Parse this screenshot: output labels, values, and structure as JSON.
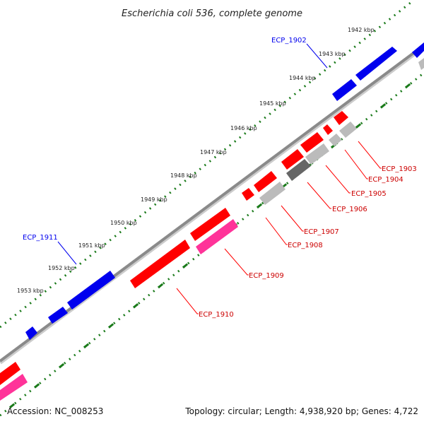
{
  "title": "Escherichia coli 536, complete genome",
  "accession": "Accession: NC_008253",
  "summary": "Topology: circular; Length: 4,938,920 bp; Genes: 4,722",
  "colors": {
    "forward_gene": "#0000ee",
    "reverse_gene": "#ff0000",
    "reverse_gene_dark": "#cc0000",
    "pink_feature": "#ff3399",
    "grey_feature": "#bbbbbb",
    "dark_grey_feature": "#666666",
    "backbone": "#888888",
    "tick_ring": "#1a7a1a"
  },
  "scale_ticks": [
    {
      "label": "1942 kbp"
    },
    {
      "label": "1943 kbp"
    },
    {
      "label": "1944 kbp"
    },
    {
      "label": "1945 kbp"
    },
    {
      "label": "1946 kbp"
    },
    {
      "label": "1947 kbp"
    },
    {
      "label": "1948 kbp"
    },
    {
      "label": "1949 kbp"
    },
    {
      "label": "1950 kbp"
    },
    {
      "label": "1951 kbp"
    },
    {
      "label": "1952 kbp"
    },
    {
      "label": "1953 kbp"
    }
  ],
  "gene_labels": [
    {
      "label": "ECP_1902",
      "strand": "forward"
    },
    {
      "label": "ECP_1911",
      "strand": "forward"
    },
    {
      "label": "ECP_1903",
      "strand": "reverse"
    },
    {
      "label": "ECP_1904",
      "strand": "reverse"
    },
    {
      "label": "ECP_1905",
      "strand": "reverse"
    },
    {
      "label": "ECP_1906",
      "strand": "reverse"
    },
    {
      "label": "ECP_1907",
      "strand": "reverse"
    },
    {
      "label": "ECP_1908",
      "strand": "reverse"
    },
    {
      "label": "ECP_1909",
      "strand": "reverse"
    },
    {
      "label": "ECP_1910",
      "strand": "reverse"
    }
  ]
}
